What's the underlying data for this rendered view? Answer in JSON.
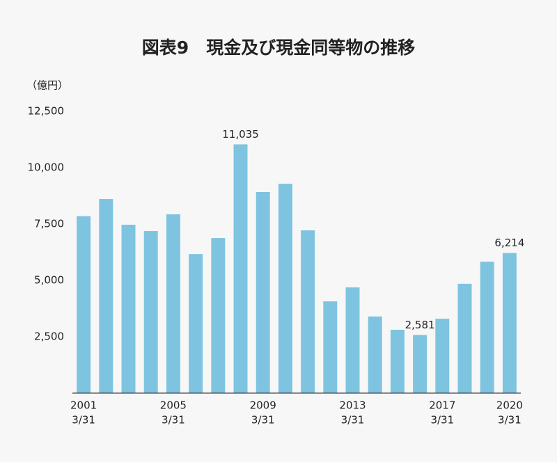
{
  "chart_data": {
    "type": "bar",
    "title": "図表9　現金及び現金同等物の推移",
    "y_label": "（億円）",
    "categories": [
      [
        "2001",
        "3/31"
      ],
      null,
      null,
      null,
      [
        "2005",
        "3/31"
      ],
      null,
      null,
      null,
      [
        "2009",
        "3/31"
      ],
      null,
      null,
      null,
      [
        "2013",
        "3/31"
      ],
      null,
      null,
      null,
      [
        "2017",
        "3/31"
      ],
      null,
      null,
      [
        "2020",
        "3/31"
      ]
    ],
    "values": [
      7850,
      8610,
      7470,
      7190,
      7930,
      6170,
      6880,
      11035,
      8920,
      9290,
      7220,
      4070,
      4690,
      3400,
      2810,
      2581,
      3300,
      4850,
      5830,
      6214
    ],
    "value_labels": [
      null,
      null,
      null,
      null,
      null,
      null,
      null,
      "11,035",
      null,
      null,
      null,
      null,
      null,
      null,
      null,
      "2,581",
      null,
      null,
      null,
      "6,214"
    ],
    "color": "#7ec4e0",
    "ylim": [
      0,
      12500
    ],
    "yticks": [
      {
        "value": 2500,
        "label": "2,500"
      },
      {
        "value": 5000,
        "label": "5,000"
      },
      {
        "value": 7500,
        "label": "7,500"
      },
      {
        "value": 10000,
        "label": "10,000"
      },
      {
        "value": 12500,
        "label": "12,500"
      }
    ],
    "grid": false
  }
}
